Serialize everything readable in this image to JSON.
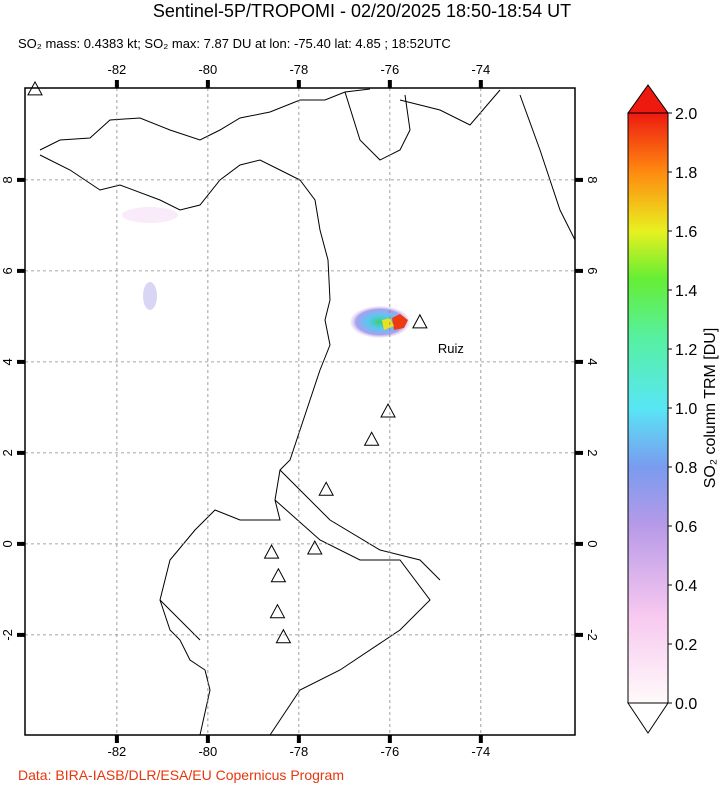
{
  "header": {
    "title": "Sentinel-5P/TROPOMI - 02/20/2025 18:50-18:54 UT",
    "subtitle": "SO₂ mass: 0.4383 kt; SO₂ max: 7.87 DU at lon: -75.40 lat: 4.85 ; 18:52UTC"
  },
  "map": {
    "xlim": [
      -84.02,
      -71.93
    ],
    "ylim": [
      -4.2,
      10.02
    ],
    "xticks": [
      -82,
      -80,
      -78,
      -76,
      -74
    ],
    "yticks": [
      8,
      6,
      4,
      2,
      0,
      -2
    ],
    "volcanoes": [
      {
        "lon": -83.8,
        "lat": 10.0
      },
      {
        "lon": -75.34,
        "lat": 4.88,
        "label": "Ruiz"
      },
      {
        "lon": -76.04,
        "lat": 2.92
      },
      {
        "lon": -76.4,
        "lat": 2.3
      },
      {
        "lon": -77.4,
        "lat": 1.2
      },
      {
        "lon": -78.6,
        "lat": -0.18
      },
      {
        "lon": -77.65,
        "lat": -0.09
      },
      {
        "lon": -78.45,
        "lat": -0.7
      },
      {
        "lon": -78.47,
        "lat": -1.49
      },
      {
        "lon": -78.34,
        "lat": -2.04
      }
    ]
  },
  "colorbar": {
    "label": "SO₂ column TRM [DU]",
    "lim": [
      0,
      2
    ],
    "ticks": [
      {
        "value": 0,
        "label": "0.0"
      },
      {
        "value": 0.2,
        "label": "0.2"
      },
      {
        "value": 0.4,
        "label": "0.4"
      },
      {
        "value": 0.6,
        "label": "0.6"
      },
      {
        "value": 0.8,
        "label": "0.8"
      },
      {
        "value": 1,
        "label": "1.0"
      },
      {
        "value": 1.2,
        "label": "1.2"
      },
      {
        "value": 1.4,
        "label": "1.4"
      },
      {
        "value": 1.6,
        "label": "1.6"
      },
      {
        "value": 1.8,
        "label": "1.8"
      },
      {
        "value": 2,
        "label": "2.0"
      }
    ]
  },
  "footer": {
    "credit": "Data: BIRA-IASB/DLR/ESA/EU Copernicus Program"
  }
}
